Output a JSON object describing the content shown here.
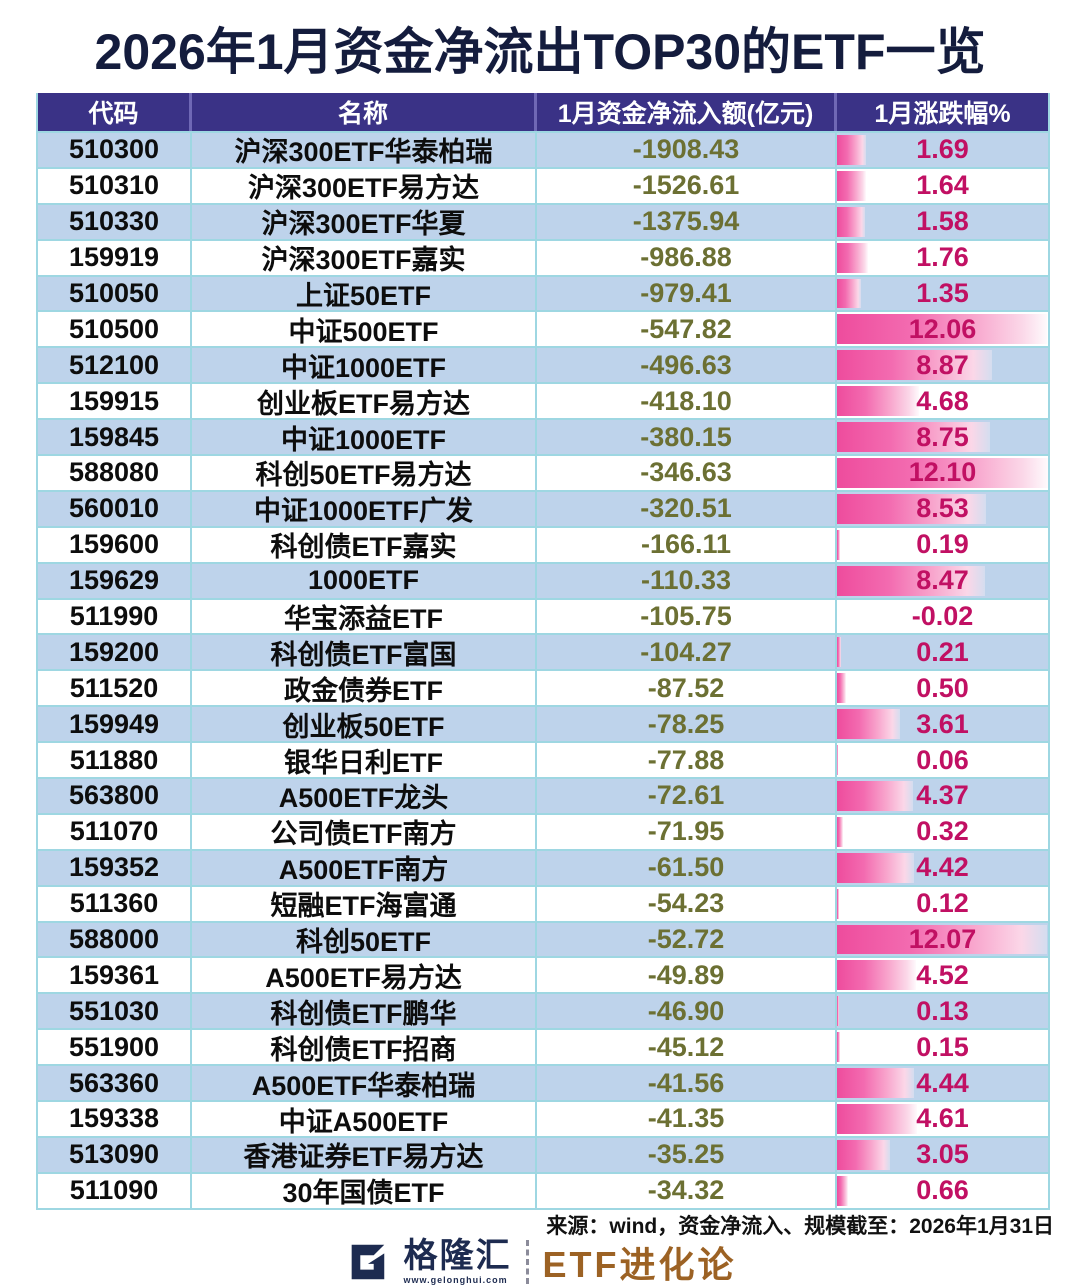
{
  "title": "2026年1月资金净流出TOP30的ETF一览",
  "footer": {
    "source": "来源：wind，资金净流入、规模截至：2026年1月31日",
    "logo_name": "格隆汇",
    "logo_url": "www.gelonghui.com",
    "brand": "ETF进化论"
  },
  "colors": {
    "header_bg": "#3a3286",
    "row_alt_blue": "#bed3eb",
    "grid_cyan": "#9ed7e2",
    "flow_olive": "#6c7033",
    "change_magenta": "#c11063",
    "bar_pink": "#ee4c9d",
    "title_navy": "#141c3d",
    "logo_navy": "#1d2b50",
    "brand_brown": "#9c6224"
  },
  "chart_data": {
    "type": "table",
    "title": "2026年1月资金净流出TOP30的ETF一览",
    "columns": [
      "代码",
      "名称",
      "1月资金净流入额(亿元)",
      "1月涨跌幅%"
    ],
    "bar_column": "1月涨跌幅%",
    "bar_max": 12.1,
    "rows": [
      {
        "code": "510300",
        "name": "沪深300ETF华泰柏瑞",
        "flow": "-1908.43",
        "change": "1.69"
      },
      {
        "code": "510310",
        "name": "沪深300ETF易方达",
        "flow": "-1526.61",
        "change": "1.64"
      },
      {
        "code": "510330",
        "name": "沪深300ETF华夏",
        "flow": "-1375.94",
        "change": "1.58"
      },
      {
        "code": "159919",
        "name": "沪深300ETF嘉实",
        "flow": "-986.88",
        "change": "1.76"
      },
      {
        "code": "510050",
        "name": "上证50ETF",
        "flow": "-979.41",
        "change": "1.35"
      },
      {
        "code": "510500",
        "name": "中证500ETF",
        "flow": "-547.82",
        "change": "12.06"
      },
      {
        "code": "512100",
        "name": "中证1000ETF",
        "flow": "-496.63",
        "change": "8.87"
      },
      {
        "code": "159915",
        "name": "创业板ETF易方达",
        "flow": "-418.10",
        "change": "4.68"
      },
      {
        "code": "159845",
        "name": "中证1000ETF",
        "flow": "-380.15",
        "change": "8.75"
      },
      {
        "code": "588080",
        "name": "科创50ETF易方达",
        "flow": "-346.63",
        "change": "12.10"
      },
      {
        "code": "560010",
        "name": "中证1000ETF广发",
        "flow": "-320.51",
        "change": "8.53"
      },
      {
        "code": "159600",
        "name": "科创债ETF嘉实",
        "flow": "-166.11",
        "change": "0.19"
      },
      {
        "code": "159629",
        "name": "1000ETF",
        "flow": "-110.33",
        "change": "8.47"
      },
      {
        "code": "511990",
        "name": "华宝添益ETF",
        "flow": "-105.75",
        "change": "-0.02"
      },
      {
        "code": "159200",
        "name": "科创债ETF富国",
        "flow": "-104.27",
        "change": "0.21"
      },
      {
        "code": "511520",
        "name": "政金债券ETF",
        "flow": "-87.52",
        "change": "0.50"
      },
      {
        "code": "159949",
        "name": "创业板50ETF",
        "flow": "-78.25",
        "change": "3.61"
      },
      {
        "code": "511880",
        "name": "银华日利ETF",
        "flow": "-77.88",
        "change": "0.06"
      },
      {
        "code": "563800",
        "name": "A500ETF龙头",
        "flow": "-72.61",
        "change": "4.37"
      },
      {
        "code": "511070",
        "name": "公司债ETF南方",
        "flow": "-71.95",
        "change": "0.32"
      },
      {
        "code": "159352",
        "name": "A500ETF南方",
        "flow": "-61.50",
        "change": "4.42"
      },
      {
        "code": "511360",
        "name": "短融ETF海富通",
        "flow": "-54.23",
        "change": "0.12"
      },
      {
        "code": "588000",
        "name": "科创50ETF",
        "flow": "-52.72",
        "change": "12.07"
      },
      {
        "code": "159361",
        "name": "A500ETF易方达",
        "flow": "-49.89",
        "change": "4.52"
      },
      {
        "code": "551030",
        "name": "科创债ETF鹏华",
        "flow": "-46.90",
        "change": "0.13"
      },
      {
        "code": "551900",
        "name": "科创债ETF招商",
        "flow": "-45.12",
        "change": "0.15"
      },
      {
        "code": "563360",
        "name": "A500ETF华泰柏瑞",
        "flow": "-41.56",
        "change": "4.44"
      },
      {
        "code": "159338",
        "name": "中证A500ETF",
        "flow": "-41.35",
        "change": "4.61"
      },
      {
        "code": "513090",
        "name": "香港证券ETF易方达",
        "flow": "-35.25",
        "change": "3.05"
      },
      {
        "code": "511090",
        "name": "30年国债ETF",
        "flow": "-34.32",
        "change": "0.66"
      }
    ]
  }
}
